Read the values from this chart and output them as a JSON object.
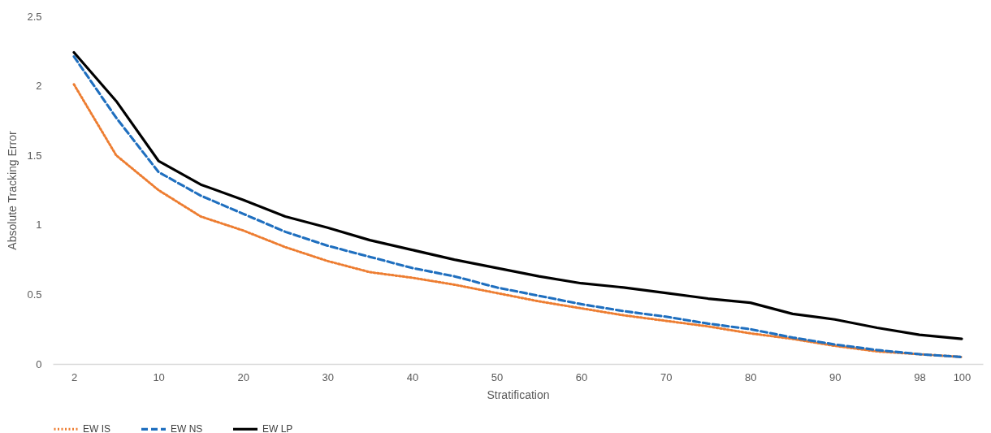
{
  "chart_data": {
    "type": "line",
    "xlabel": "Stratification",
    "ylabel": "Absolute Tracking Error",
    "categories": [
      "2",
      null,
      "10",
      null,
      "20",
      null,
      "30",
      null,
      "40",
      null,
      "50",
      null,
      "60",
      null,
      "70",
      null,
      "80",
      null,
      "90",
      null,
      "98",
      "100"
    ],
    "series": [
      {
        "name": "EW IS",
        "color": "#ed7d31",
        "line_style": "dotted",
        "values": [
          2.01,
          1.5,
          1.25,
          1.06,
          0.96,
          0.84,
          0.74,
          0.66,
          0.62,
          0.57,
          0.51,
          0.45,
          0.4,
          0.35,
          0.31,
          0.27,
          0.22,
          0.18,
          0.13,
          0.09,
          0.07,
          0.05
        ]
      },
      {
        "name": "EW NS",
        "color": "#1f6fbf",
        "line_style": "dashed",
        "values": [
          2.21,
          1.77,
          1.38,
          1.21,
          1.08,
          0.95,
          0.85,
          0.77,
          0.69,
          0.63,
          0.55,
          0.49,
          0.43,
          0.38,
          0.34,
          0.29,
          0.25,
          0.19,
          0.14,
          0.1,
          0.07,
          0.05
        ]
      },
      {
        "name": "EW LP",
        "color": "#000000",
        "line_style": "solid",
        "values": [
          2.24,
          1.89,
          1.46,
          1.29,
          1.18,
          1.06,
          0.98,
          0.89,
          0.82,
          0.75,
          0.69,
          0.63,
          0.58,
          0.55,
          0.51,
          0.47,
          0.44,
          0.36,
          0.32,
          0.26,
          0.21,
          0.18
        ]
      }
    ],
    "ylim": [
      0,
      2.5
    ],
    "yticks": [
      0,
      0.5,
      1,
      1.5,
      2,
      2.5
    ],
    "legend": "bottom",
    "marker": "none"
  }
}
